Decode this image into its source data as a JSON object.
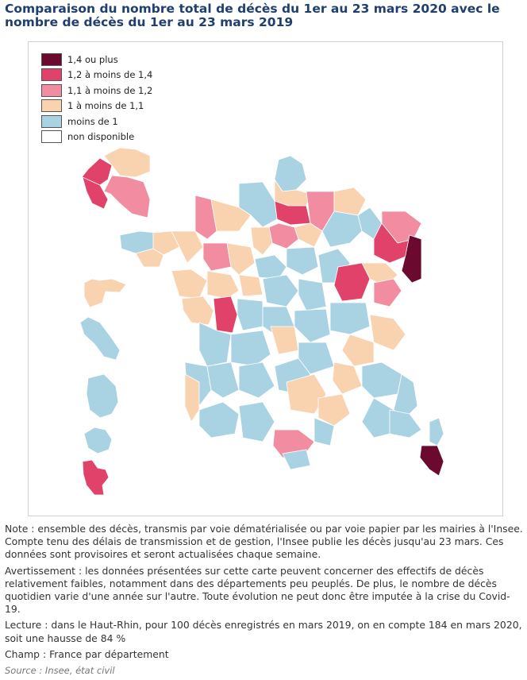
{
  "title": "Comparaison du nombre total de décès du 1er au 23 mars 2020 avec le nombre de décès du 1er au 23 mars 2019",
  "legend": [
    {
      "label": "1,4 ou plus",
      "color": "#6b0a2e"
    },
    {
      "label": "1,2 à moins de 1,4",
      "color": "#e0426a"
    },
    {
      "label": "1,1 à moins de 1,2",
      "color": "#f28ca1"
    },
    {
      "label": "1 à moins de 1,1",
      "color": "#f9d2b0"
    },
    {
      "label": "moins de 1",
      "color": "#a9d3e3"
    },
    {
      "label": "non disponible",
      "color": "#ffffff"
    }
  ],
  "notes": {
    "note": "Note : ensemble des décès, transmis par voie dématérialisée ou par voie papier par les mairies à l'Insee. Compte tenu des délais de transmission et de gestion, l'Insee publie les décès jusqu'au 23 mars. Ces données sont provisoires et seront actualisées chaque semaine.",
    "warning": "Avertissement : les données présentées sur cette carte peuvent concerner des effectifs de décès relativement faibles, notamment dans des départements peu peuplés. De plus, le nombre de décès quotidien varie d'une année sur l'autre. Toute évolution ne peut donc être imputée à la crise du Covid-19.",
    "reading": "Lecture : dans le Haut-Rhin, pour 100 décès enregistrés en mars 2019, on en compte 184 en mars 2020, soit une hausse de 84 %",
    "scope": "Champ : France par département",
    "source": "Source : Insee, état civil"
  }
}
